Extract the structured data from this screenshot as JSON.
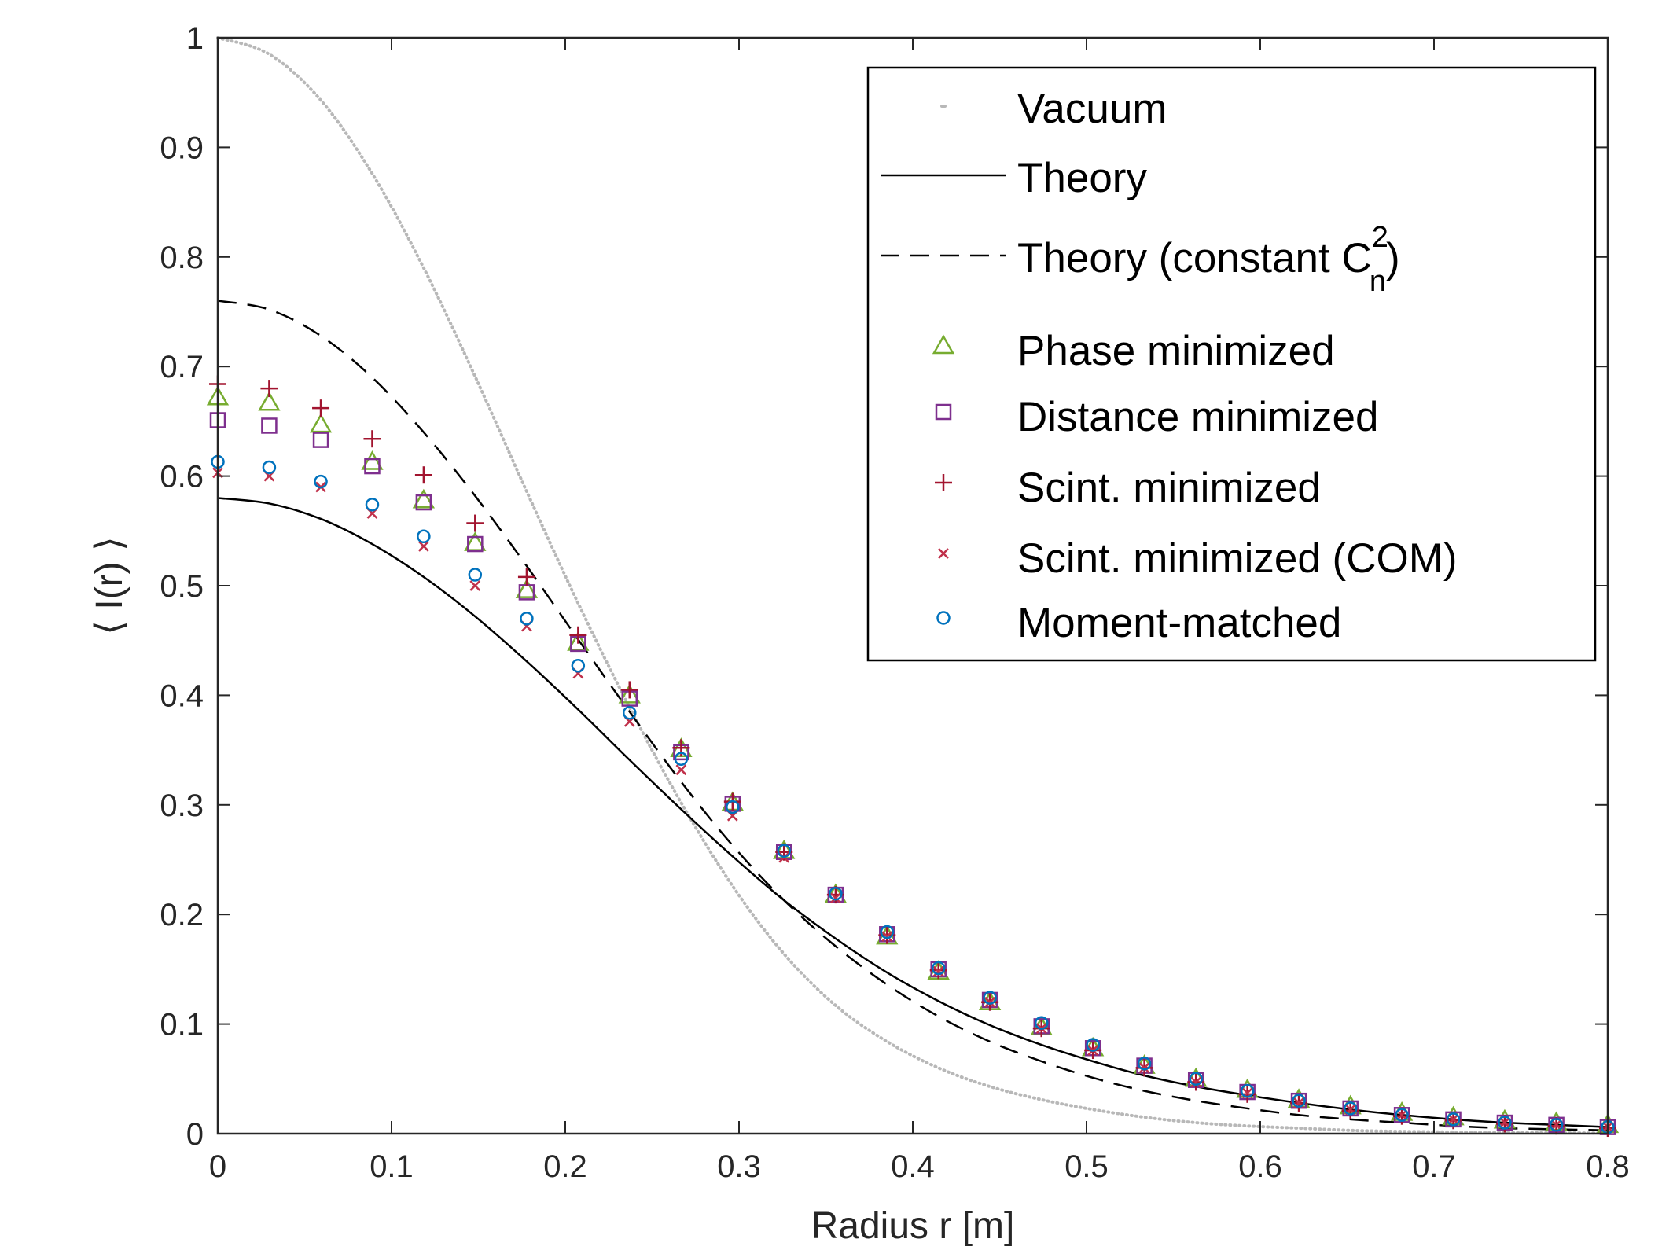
{
  "chart_data": {
    "type": "line",
    "title": "",
    "xlabel": "Radius r [m]",
    "ylabel": "⟨ I(r) ⟩",
    "xlim": [
      0,
      0.8
    ],
    "ylim": [
      0,
      1
    ],
    "x_ticks": [
      "0",
      "0.1",
      "0.2",
      "0.3",
      "0.4",
      "0.5",
      "0.6",
      "0.7",
      "0.8"
    ],
    "y_ticks": [
      "0",
      "0.1",
      "0.2",
      "0.3",
      "0.4",
      "0.5",
      "0.6",
      "0.7",
      "0.8",
      "0.9",
      "1"
    ],
    "grid": false,
    "legend_position": "top-right",
    "x": [
      0,
      0.0296,
      0.0593,
      0.0889,
      0.1185,
      0.1481,
      0.1778,
      0.2074,
      0.237,
      0.2667,
      0.2963,
      0.3259,
      0.3556,
      0.3852,
      0.4148,
      0.4444,
      0.4741,
      0.5037,
      0.5333,
      0.563,
      0.5926,
      0.6222,
      0.6519,
      0.6815,
      0.7111,
      0.7407,
      0.7704,
      0.8
    ],
    "series": [
      {
        "name": "Vacuum",
        "style": "dotted",
        "color": "#b8b8b8",
        "values": [
          1.0,
          0.985,
          0.943,
          0.876,
          0.79,
          0.691,
          0.586,
          0.484,
          0.389,
          0.302,
          0.226,
          0.164,
          0.117,
          0.084,
          0.06,
          0.043,
          0.031,
          0.022,
          0.015,
          0.01,
          0.007,
          0.005,
          0.003,
          0.002,
          0.0015,
          0.001,
          0.0007,
          0.0005
        ]
      },
      {
        "name": "Theory",
        "style": "solid",
        "color": "#000000",
        "values": [
          0.58,
          0.575,
          0.561,
          0.538,
          0.508,
          0.472,
          0.431,
          0.387,
          0.341,
          0.296,
          0.253,
          0.213,
          0.178,
          0.147,
          0.121,
          0.099,
          0.081,
          0.066,
          0.053,
          0.043,
          0.035,
          0.028,
          0.022,
          0.017,
          0.013,
          0.01,
          0.008,
          0.006
        ]
      },
      {
        "name": "Theory (constant C",
        "sup": "2",
        "sub": "n",
        "name_end": ")",
        "style": "dashed",
        "color": "#000000",
        "values": [
          0.76,
          0.752,
          0.728,
          0.69,
          0.64,
          0.582,
          0.518,
          0.451,
          0.385,
          0.321,
          0.263,
          0.213,
          0.171,
          0.136,
          0.107,
          0.084,
          0.066,
          0.051,
          0.039,
          0.03,
          0.023,
          0.017,
          0.013,
          0.01,
          0.007,
          0.005,
          0.004,
          0.003
        ]
      },
      {
        "name": "Phase minimized",
        "marker": "triangle",
        "color": "#77ac30",
        "values": [
          0.672,
          0.667,
          0.647,
          0.613,
          0.578,
          0.539,
          0.496,
          0.448,
          0.4,
          0.351,
          0.302,
          0.258,
          0.218,
          0.18,
          0.148,
          0.12,
          0.097,
          0.078,
          0.062,
          0.05,
          0.04,
          0.031,
          0.025,
          0.019,
          0.015,
          0.012,
          0.01,
          0.008
        ]
      },
      {
        "name": "Distance minimized",
        "marker": "square",
        "color": "#7e2f8e",
        "values": [
          0.651,
          0.646,
          0.633,
          0.609,
          0.576,
          0.538,
          0.494,
          0.447,
          0.397,
          0.348,
          0.301,
          0.257,
          0.218,
          0.182,
          0.15,
          0.122,
          0.098,
          0.078,
          0.062,
          0.049,
          0.038,
          0.03,
          0.023,
          0.017,
          0.013,
          0.01,
          0.008,
          0.006
        ]
      },
      {
        "name": "Scint. minimized",
        "marker": "plus",
        "color": "#a2142f",
        "values": [
          0.684,
          0.68,
          0.662,
          0.634,
          0.601,
          0.557,
          0.508,
          0.455,
          0.405,
          0.352,
          0.303,
          0.257,
          0.218,
          0.181,
          0.149,
          0.12,
          0.096,
          0.076,
          0.06,
          0.047,
          0.036,
          0.028,
          0.021,
          0.016,
          0.012,
          0.009,
          0.007,
          0.005
        ]
      },
      {
        "name": "Scint. minimized (COM)",
        "marker": "x",
        "color": "#c0304a",
        "values": [
          0.603,
          0.6,
          0.59,
          0.566,
          0.536,
          0.5,
          0.463,
          0.42,
          0.376,
          0.332,
          0.29,
          0.252,
          0.215,
          0.18,
          0.148,
          0.12,
          0.096,
          0.076,
          0.06,
          0.047,
          0.037,
          0.028,
          0.022,
          0.017,
          0.013,
          0.01,
          0.008,
          0.006
        ]
      },
      {
        "name": "Moment-matched",
        "marker": "circle",
        "color": "#0072bd",
        "values": [
          0.613,
          0.608,
          0.595,
          0.574,
          0.545,
          0.51,
          0.47,
          0.427,
          0.384,
          0.342,
          0.298,
          0.258,
          0.219,
          0.184,
          0.151,
          0.124,
          0.101,
          0.081,
          0.064,
          0.05,
          0.039,
          0.03,
          0.023,
          0.017,
          0.013,
          0.01,
          0.008,
          0.006
        ]
      }
    ]
  }
}
